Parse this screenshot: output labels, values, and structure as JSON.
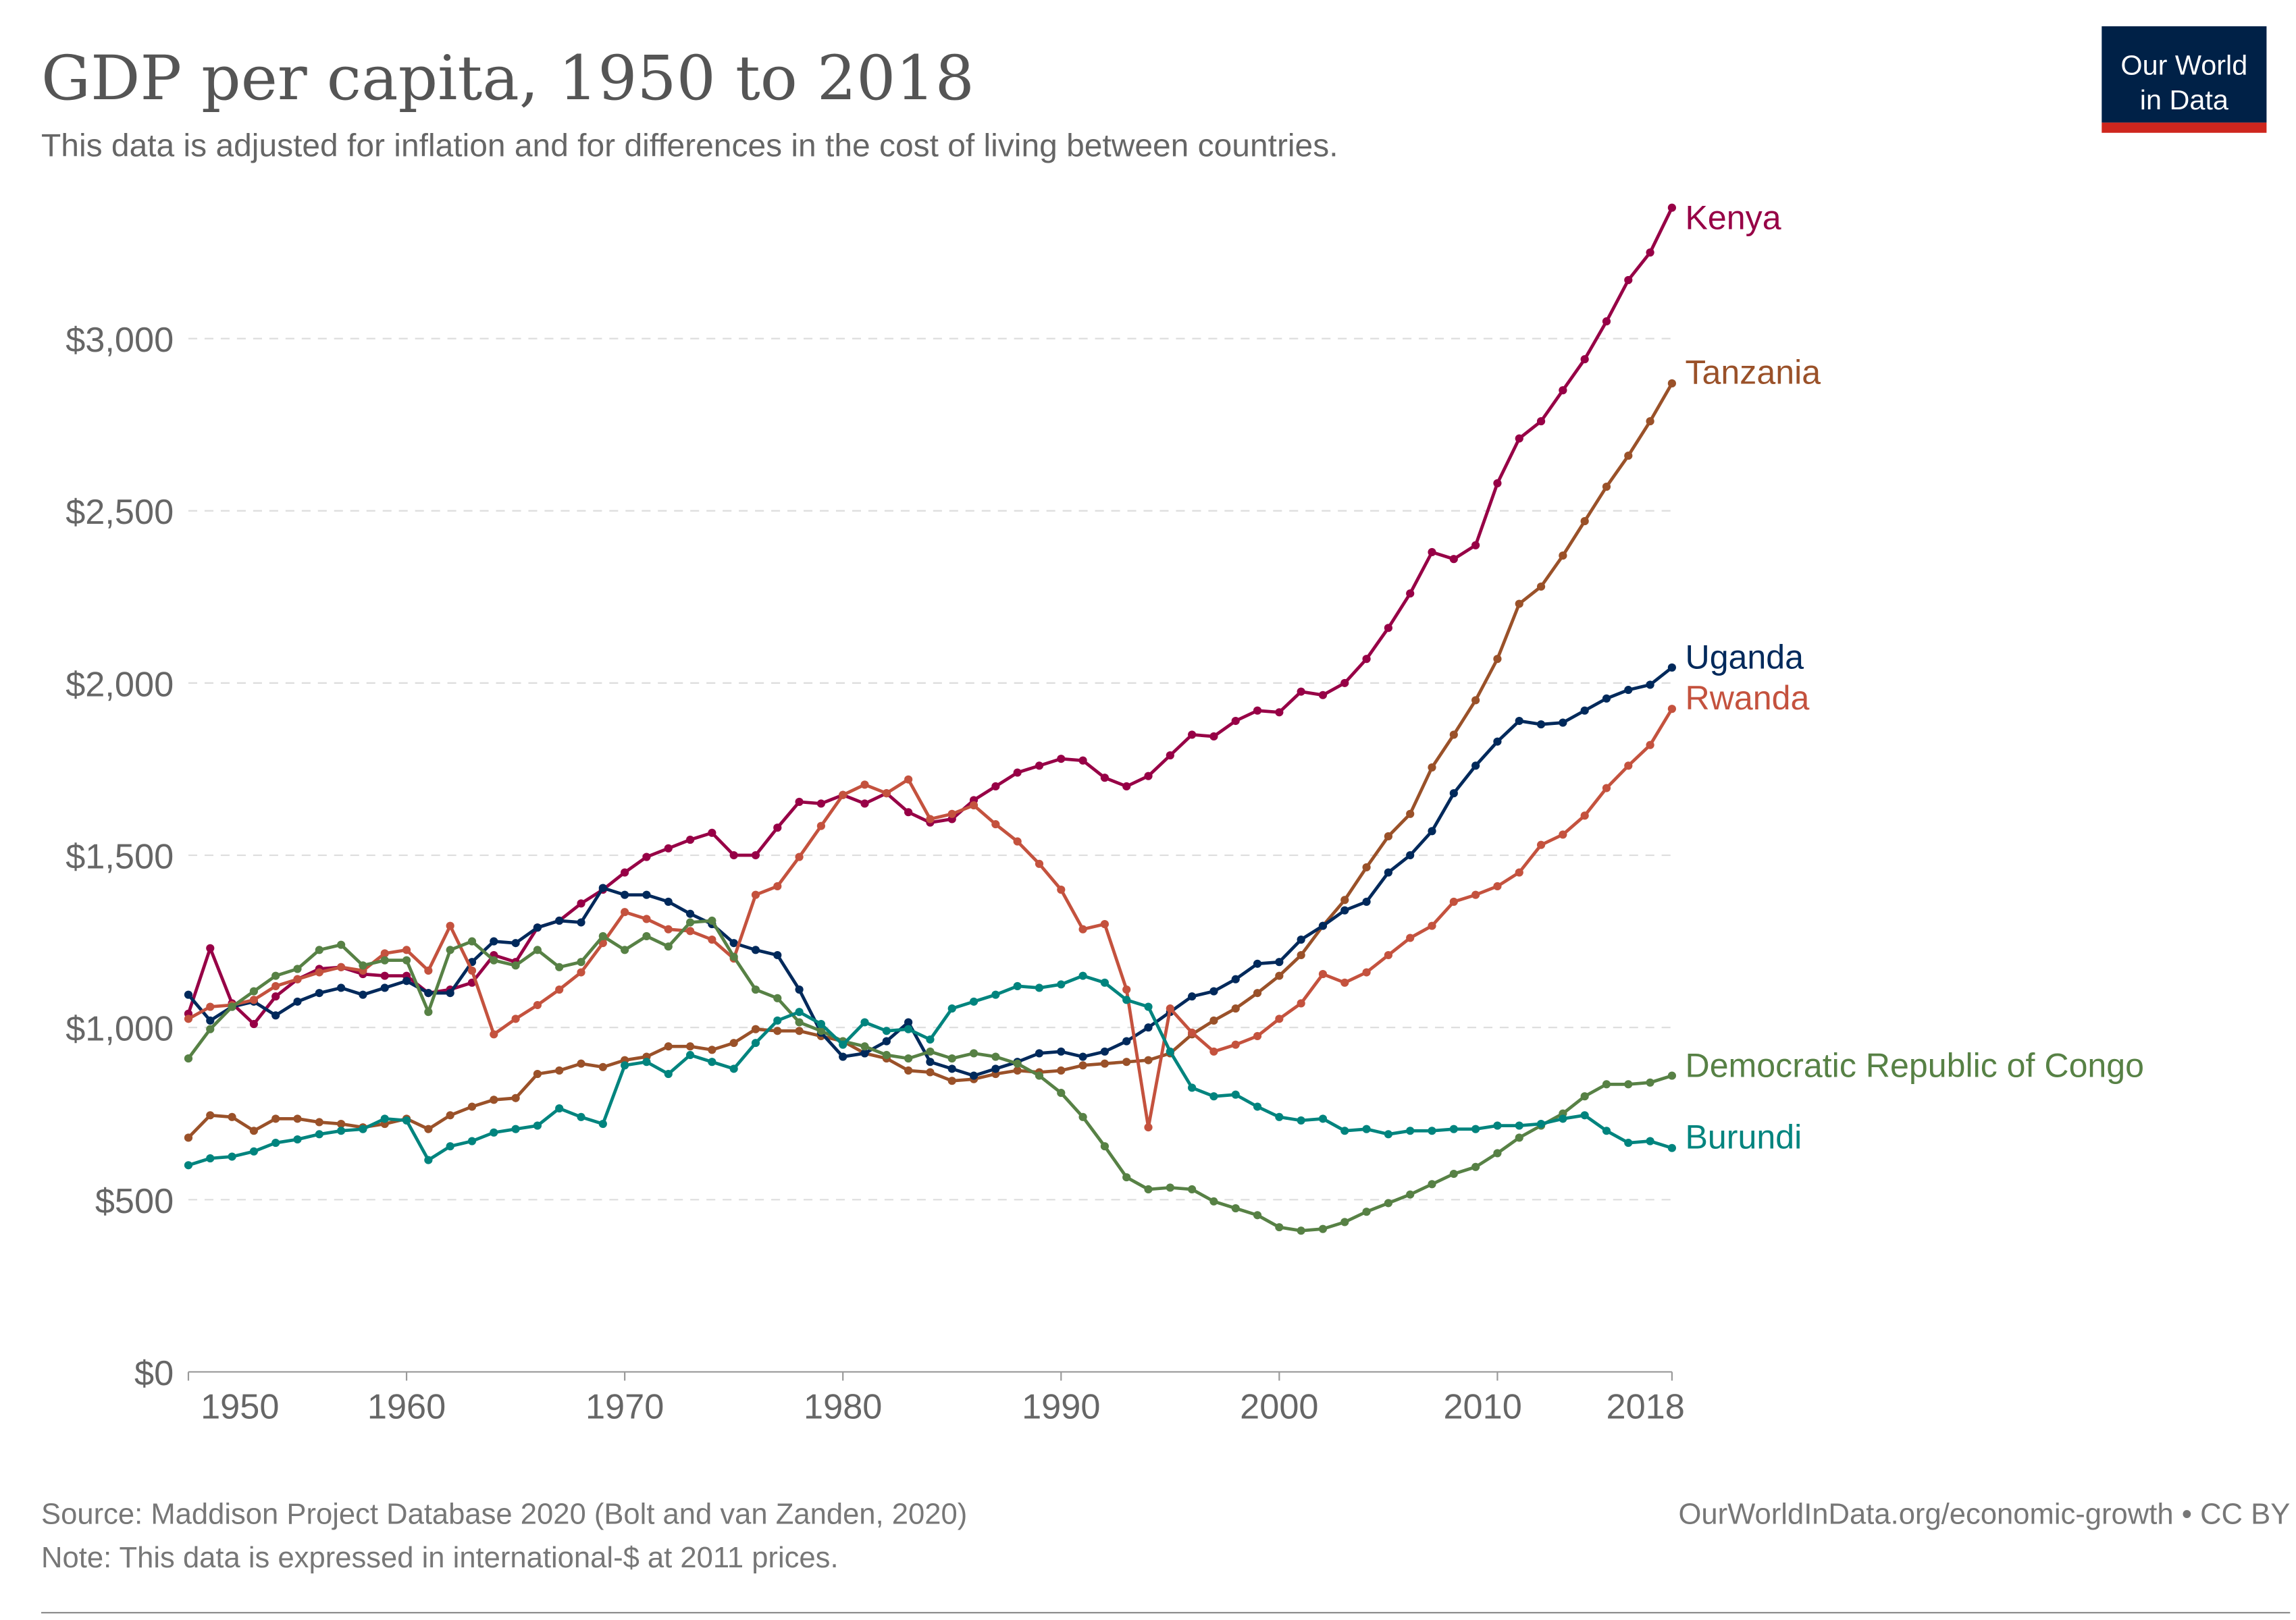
{
  "header": {
    "title": "GDP per capita, 1950 to 2018",
    "subtitle": "This data is adjusted for inflation and for differences in the cost of living between countries.",
    "logo_line1": "Our World",
    "logo_line2": "in Data",
    "logo_colors": {
      "bg": "#002147",
      "bar": "#ce261e"
    }
  },
  "footer": {
    "source": "Source: Maddison Project Database 2020 (Bolt and van Zanden, 2020)",
    "note": "Note: This data is expressed in international-$ at 2011 prices.",
    "link": "OurWorldInData.org/economic-growth • CC BY"
  },
  "chart_data": {
    "type": "line",
    "title": "GDP per capita, 1950 to 2018",
    "xlabel": "",
    "ylabel": "",
    "xlim": [
      1950,
      2018
    ],
    "ylim": [
      0,
      3400
    ],
    "grid": true,
    "legend": "right (inline labels at line ends)",
    "x_ticks": [
      "1950",
      "1960",
      "1970",
      "1980",
      "1990",
      "2000",
      "2010",
      "2018"
    ],
    "x_tick_values": [
      1950,
      1960,
      1970,
      1980,
      1990,
      2000,
      2010,
      2018
    ],
    "y_ticks": [
      "$0",
      "$500",
      "$1,000",
      "$1,500",
      "$2,000",
      "$2,500",
      "$3,000"
    ],
    "y_tick_values": [
      0,
      500,
      1000,
      1500,
      2000,
      2500,
      3000
    ],
    "x_start": 1950,
    "series": [
      {
        "name": "Kenya",
        "color": "#970046",
        "values": [
          1040,
          1230,
          1070,
          1010,
          1090,
          1140,
          1170,
          1175,
          1155,
          1150,
          1150,
          1100,
          1110,
          1130,
          1210,
          1190,
          1290,
          1310,
          1360,
          1400,
          1450,
          1495,
          1520,
          1545,
          1565,
          1500,
          1500,
          1580,
          1655,
          1650,
          1675,
          1650,
          1680,
          1625,
          1595,
          1605,
          1660,
          1700,
          1740,
          1760,
          1780,
          1775,
          1725,
          1700,
          1730,
          1790,
          1850,
          1845,
          1890,
          1920,
          1915,
          1975,
          1965,
          2000,
          2070,
          2160,
          2260,
          2380,
          2360,
          2400,
          2580,
          2710,
          2760,
          2850,
          2940,
          3050,
          3170,
          3250,
          3380
        ]
      },
      {
        "name": "Tanzania",
        "color": "#9a5129",
        "values": [
          680,
          745,
          740,
          700,
          735,
          735,
          725,
          720,
          710,
          720,
          735,
          705,
          745,
          770,
          790,
          795,
          865,
          875,
          895,
          885,
          905,
          915,
          945,
          945,
          935,
          955,
          995,
          990,
          990,
          975,
          960,
          925,
          910,
          875,
          870,
          845,
          850,
          865,
          875,
          870,
          875,
          890,
          895,
          900,
          905,
          925,
          980,
          1020,
          1055,
          1100,
          1150,
          1210,
          1295,
          1370,
          1465,
          1555,
          1620,
          1755,
          1850,
          1950,
          2070,
          2230,
          2280,
          2370,
          2470,
          2570,
          2660,
          2760,
          2870
        ]
      },
      {
        "name": "Uganda",
        "color": "#00295b",
        "values": [
          1095,
          1020,
          1060,
          1075,
          1035,
          1075,
          1100,
          1115,
          1095,
          1115,
          1135,
          1100,
          1100,
          1190,
          1250,
          1245,
          1290,
          1310,
          1305,
          1405,
          1385,
          1385,
          1365,
          1330,
          1300,
          1245,
          1225,
          1210,
          1110,
          985,
          915,
          925,
          960,
          1015,
          900,
          880,
          860,
          880,
          900,
          925,
          930,
          915,
          930,
          960,
          1000,
          1045,
          1090,
          1105,
          1140,
          1185,
          1190,
          1255,
          1295,
          1340,
          1365,
          1450,
          1500,
          1570,
          1680,
          1760,
          1830,
          1890,
          1880,
          1885,
          1920,
          1955,
          1980,
          1995,
          2045
        ]
      },
      {
        "name": "Rwanda",
        "color": "#c4523e",
        "values": [
          1025,
          1060,
          1065,
          1080,
          1120,
          1140,
          1160,
          1175,
          1165,
          1215,
          1225,
          1165,
          1295,
          1165,
          980,
          1025,
          1065,
          1110,
          1160,
          1245,
          1335,
          1315,
          1285,
          1280,
          1255,
          1200,
          1385,
          1410,
          1495,
          1585,
          1675,
          1705,
          1680,
          1720,
          1605,
          1620,
          1645,
          1590,
          1540,
          1475,
          1400,
          1285,
          1300,
          1110,
          710,
          1055,
          985,
          930,
          950,
          975,
          1025,
          1070,
          1155,
          1130,
          1160,
          1210,
          1260,
          1295,
          1365,
          1385,
          1410,
          1450,
          1530,
          1560,
          1615,
          1695,
          1760,
          1820,
          1925
        ]
      },
      {
        "name": "Democratic Republic of Congo",
        "color": "#578145",
        "values": [
          910,
          995,
          1060,
          1105,
          1150,
          1170,
          1225,
          1240,
          1180,
          1195,
          1195,
          1045,
          1225,
          1250,
          1195,
          1180,
          1225,
          1175,
          1190,
          1265,
          1225,
          1265,
          1235,
          1305,
          1310,
          1205,
          1110,
          1085,
          1015,
          990,
          960,
          945,
          920,
          910,
          930,
          910,
          925,
          915,
          895,
          860,
          810,
          740,
          655,
          565,
          530,
          535,
          530,
          495,
          475,
          455,
          420,
          410,
          415,
          435,
          465,
          490,
          515,
          545,
          575,
          595,
          635,
          680,
          715,
          750,
          800,
          835,
          835,
          840,
          860
        ]
      },
      {
        "name": "Burundi",
        "color": "#00847e",
        "values": [
          600,
          620,
          625,
          640,
          665,
          675,
          690,
          700,
          705,
          735,
          730,
          615,
          655,
          670,
          695,
          705,
          715,
          765,
          740,
          720,
          890,
          900,
          865,
          920,
          900,
          880,
          955,
          1020,
          1045,
          1010,
          950,
          1015,
          990,
          995,
          965,
          1055,
          1075,
          1095,
          1120,
          1115,
          1125,
          1150,
          1130,
          1080,
          1060,
          930,
          825,
          800,
          805,
          770,
          740,
          730,
          735,
          700,
          705,
          690,
          700,
          700,
          705,
          705,
          715,
          715,
          720,
          735,
          745,
          700,
          665,
          670,
          650
        ]
      }
    ]
  }
}
